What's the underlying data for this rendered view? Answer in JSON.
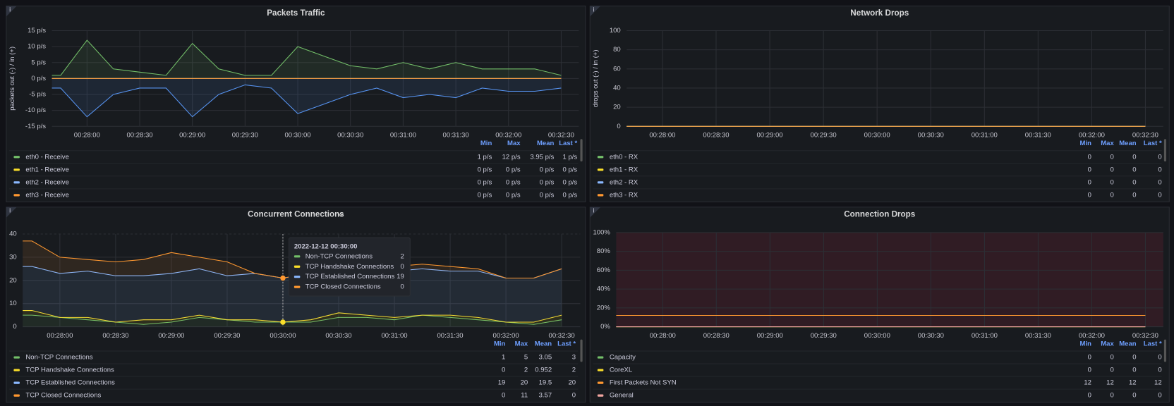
{
  "chart_data": [
    {
      "type": "line",
      "title": "Packets Traffic",
      "ylabel": "packets out (-) / in (+)",
      "fill": true,
      "x": [
        "00:27:30",
        "00:27:45",
        "00:28:00",
        "00:28:15",
        "00:28:30",
        "00:28:45",
        "00:29:00",
        "00:29:15",
        "00:29:30",
        "00:29:45",
        "00:30:00",
        "00:30:15",
        "00:30:30",
        "00:30:45",
        "00:31:00",
        "00:31:15",
        "00:31:30",
        "00:31:45",
        "00:32:00",
        "00:32:15",
        "00:32:30"
      ],
      "xlim": [
        "00:27:40",
        "00:32:40"
      ],
      "xticks": [
        "00:28:00",
        "00:28:30",
        "00:29:00",
        "00:29:30",
        "00:30:00",
        "00:30:30",
        "00:31:00",
        "00:31:30",
        "00:32:00",
        "00:32:30"
      ],
      "ylim": [
        -15,
        15
      ],
      "yticks": [
        {
          "value": 15,
          "label": "15 p/s"
        },
        {
          "value": 10,
          "label": "10 p/s"
        },
        {
          "value": 5,
          "label": "5 p/s"
        },
        {
          "value": 0,
          "label": "0 p/s"
        },
        {
          "value": -5,
          "label": "-5 p/s"
        },
        {
          "value": -10,
          "label": "-10 p/s"
        },
        {
          "value": -15,
          "label": "-15 p/s"
        }
      ],
      "grid": true,
      "legend_columns": [
        "Min",
        "Max",
        "Mean",
        "Last *"
      ],
      "series": [
        {
          "color": "#5794f2",
          "values": [
            -3,
            -3,
            -12,
            -5,
            -3,
            -3,
            -12,
            -5,
            -2,
            -3,
            -11,
            -8,
            -5,
            -3,
            -6,
            -5,
            -6,
            -3,
            -4,
            -4,
            -3
          ]
        },
        {
          "name": "eth0 - Receive",
          "color": "#73bf69",
          "values": [
            1,
            1,
            12,
            3,
            2,
            1,
            11,
            3,
            1,
            1,
            10,
            7,
            4,
            3,
            5,
            3,
            5,
            3,
            3,
            3,
            1
          ],
          "stats": [
            "1 p/s",
            "12 p/s",
            "3.95 p/s",
            "1 p/s"
          ]
        },
        {
          "name": "eth1 - Receive",
          "color": "#fade2a",
          "values": [
            0,
            0,
            0,
            0,
            0,
            0,
            0,
            0,
            0,
            0,
            0,
            0,
            0,
            0,
            0,
            0,
            0,
            0,
            0,
            0,
            0
          ],
          "stats": [
            "0 p/s",
            "0 p/s",
            "0 p/s",
            "0 p/s"
          ]
        },
        {
          "name": "eth2 - Receive",
          "color": "#8ab8ff",
          "values": [
            0,
            0,
            0,
            0,
            0,
            0,
            0,
            0,
            0,
            0,
            0,
            0,
            0,
            0,
            0,
            0,
            0,
            0,
            0,
            0,
            0
          ],
          "stats": [
            "0 p/s",
            "0 p/s",
            "0 p/s",
            "0 p/s"
          ]
        },
        {
          "name": "eth3 - Receive",
          "color": "#ff9830",
          "values": [
            0,
            0,
            0,
            0,
            0,
            0,
            0,
            0,
            0,
            0,
            0,
            0,
            0,
            0,
            0,
            0,
            0,
            0,
            0,
            0,
            0
          ],
          "stats": [
            "0 p/s",
            "0 p/s",
            "0 p/s",
            "0 p/s"
          ]
        }
      ]
    },
    {
      "type": "line",
      "title": "Network Drops",
      "ylabel": "drops out (-) / in (+)",
      "x": [
        "00:27:30",
        "00:27:45",
        "00:28:00",
        "00:28:15",
        "00:28:30",
        "00:28:45",
        "00:29:00",
        "00:29:15",
        "00:29:30",
        "00:29:45",
        "00:30:00",
        "00:30:15",
        "00:30:30",
        "00:30:45",
        "00:31:00",
        "00:31:15",
        "00:31:30",
        "00:31:45",
        "00:32:00",
        "00:32:15",
        "00:32:30"
      ],
      "xlim": [
        "00:27:40",
        "00:32:40"
      ],
      "xticks": [
        "00:28:00",
        "00:28:30",
        "00:29:00",
        "00:29:30",
        "00:30:00",
        "00:30:30",
        "00:31:00",
        "00:31:30",
        "00:32:00",
        "00:32:30"
      ],
      "ylim": [
        0,
        100
      ],
      "yticks": [
        0,
        20,
        40,
        60,
        80,
        100
      ],
      "grid": true,
      "legend_columns": [
        "Min",
        "Max",
        "Mean",
        "Last *"
      ],
      "series": [
        {
          "name": "eth0 - RX",
          "color": "#73bf69",
          "values": [
            0,
            0,
            0,
            0,
            0,
            0,
            0,
            0,
            0,
            0,
            0,
            0,
            0,
            0,
            0,
            0,
            0,
            0,
            0,
            0,
            0
          ],
          "stats": [
            0,
            0,
            0,
            0
          ]
        },
        {
          "name": "eth1 - RX",
          "color": "#fade2a",
          "values": [
            0,
            0,
            0,
            0,
            0,
            0,
            0,
            0,
            0,
            0,
            0,
            0,
            0,
            0,
            0,
            0,
            0,
            0,
            0,
            0,
            0
          ],
          "stats": [
            0,
            0,
            0,
            0
          ]
        },
        {
          "name": "eth2 - RX",
          "color": "#8ab8ff",
          "values": [
            0,
            0,
            0,
            0,
            0,
            0,
            0,
            0,
            0,
            0,
            0,
            0,
            0,
            0,
            0,
            0,
            0,
            0,
            0,
            0,
            0
          ],
          "stats": [
            0,
            0,
            0,
            0
          ]
        },
        {
          "name": "eth3 - RX",
          "color": "#ff9830",
          "values": [
            0,
            0,
            0,
            0,
            0,
            0,
            0,
            0,
            0,
            0,
            0,
            0,
            0,
            0,
            0,
            0,
            0,
            0,
            0,
            0,
            0
          ],
          "stats": [
            0,
            0,
            0,
            0
          ]
        }
      ]
    },
    {
      "type": "line",
      "title": "Concurrent Connections",
      "stacked": true,
      "fill": true,
      "x": [
        "00:27:30",
        "00:27:45",
        "00:28:00",
        "00:28:15",
        "00:28:30",
        "00:28:45",
        "00:29:00",
        "00:29:15",
        "00:29:30",
        "00:29:45",
        "00:30:00",
        "00:30:15",
        "00:30:30",
        "00:30:45",
        "00:31:00",
        "00:31:15",
        "00:31:30",
        "00:31:45",
        "00:32:00",
        "00:32:15",
        "00:32:30"
      ],
      "xlim": [
        "00:27:40",
        "00:32:40"
      ],
      "xticks": [
        "00:28:00",
        "00:28:30",
        "00:29:00",
        "00:29:30",
        "00:30:00",
        "00:30:30",
        "00:31:00",
        "00:31:30",
        "00:32:00",
        "00:32:30"
      ],
      "ylim": [
        0,
        40
      ],
      "yticks": [
        0,
        10,
        20,
        30,
        40
      ],
      "grid": true,
      "legend_columns": [
        "Min",
        "Max",
        "Mean",
        "Last *"
      ],
      "series": [
        {
          "name": "Non-TCP Connections",
          "color": "#73bf69",
          "values": [
            5,
            5,
            4,
            3,
            2,
            1,
            2,
            4,
            3,
            2,
            2,
            2,
            4,
            4,
            3,
            5,
            4,
            3,
            2,
            1,
            3
          ],
          "stats": [
            1,
            5,
            3.05,
            3
          ]
        },
        {
          "name": "TCP Handshake Connections",
          "color": "#fade2a",
          "values": [
            2,
            2,
            0,
            1,
            0,
            2,
            1,
            1,
            0,
            1,
            0,
            1,
            2,
            1,
            1,
            0,
            1,
            1,
            0,
            1,
            2
          ],
          "stats": [
            0,
            2,
            0.952,
            2
          ]
        },
        {
          "name": "TCP Established Connections",
          "color": "#8ab8ff",
          "values": [
            19,
            19,
            19,
            20,
            20,
            19,
            20,
            20,
            19,
            20,
            19,
            20,
            20,
            19,
            20,
            20,
            19,
            20,
            19,
            19,
            20
          ],
          "stats": [
            19,
            20,
            19.5,
            20
          ]
        },
        {
          "name": "TCP Closed Connections",
          "color": "#ff9830",
          "values": [
            11,
            11,
            7,
            5,
            6,
            7,
            9,
            5,
            6,
            0,
            0,
            0,
            0,
            1,
            2,
            2,
            2,
            1,
            0,
            0,
            0
          ],
          "stats": [
            0,
            11,
            3.57,
            0
          ]
        }
      ],
      "tooltip": {
        "title": "2022-12-12 00:30:00"
      }
    },
    {
      "type": "line",
      "title": "Connection Drops",
      "x": [
        "00:27:30",
        "00:27:45",
        "00:28:00",
        "00:28:15",
        "00:28:30",
        "00:28:45",
        "00:29:00",
        "00:29:15",
        "00:29:30",
        "00:29:45",
        "00:30:00",
        "00:30:15",
        "00:30:30",
        "00:30:45",
        "00:31:00",
        "00:31:15",
        "00:31:30",
        "00:31:45",
        "00:32:00",
        "00:32:15",
        "00:32:30"
      ],
      "xlim": [
        "00:27:34",
        "00:32:40"
      ],
      "xticks": [
        "00:28:00",
        "00:28:30",
        "00:29:00",
        "00:29:30",
        "00:30:00",
        "00:30:30",
        "00:31:00",
        "00:31:30",
        "00:32:00",
        "00:32:30"
      ],
      "ylim": [
        0,
        100
      ],
      "yticks": [
        {
          "value": 0,
          "label": "0%"
        },
        {
          "value": 20,
          "label": "20%"
        },
        {
          "value": 40,
          "label": "40%"
        },
        {
          "value": 60,
          "label": "60%"
        },
        {
          "value": 80,
          "label": "80%"
        },
        {
          "value": 100,
          "label": "100%"
        }
      ],
      "grid": true,
      "legend_columns": [
        "Min",
        "Max",
        "Mean",
        "Last *"
      ],
      "series": [
        {
          "name": "Capacity",
          "color": "#73bf69",
          "values": [
            0,
            0,
            0,
            0,
            0,
            0,
            0,
            0,
            0,
            0,
            0,
            0,
            0,
            0,
            0,
            0,
            0,
            0,
            0,
            0,
            0
          ],
          "stats": [
            0,
            0,
            0,
            0
          ]
        },
        {
          "name": "CoreXL",
          "color": "#fade2a",
          "values": [
            0,
            0,
            0,
            0,
            0,
            0,
            0,
            0,
            0,
            0,
            0,
            0,
            0,
            0,
            0,
            0,
            0,
            0,
            0,
            0,
            0
          ],
          "stats": [
            0,
            0,
            0,
            0
          ]
        },
        {
          "name": "First Packets Not SYN",
          "color": "#ff9830",
          "values": [
            12,
            12,
            12,
            12,
            12,
            12,
            12,
            12,
            12,
            12,
            12,
            12,
            12,
            12,
            12,
            12,
            12,
            12,
            12,
            12,
            12
          ],
          "stats": [
            12,
            12,
            12,
            12
          ]
        },
        {
          "name": "General",
          "color": "#f2a6a0",
          "values": [
            0,
            0,
            0,
            0,
            0,
            0,
            0,
            0,
            0,
            0,
            0,
            0,
            0,
            0,
            0,
            0,
            0,
            0,
            0,
            0,
            0
          ],
          "stats": [
            0,
            0,
            0,
            0
          ]
        }
      ]
    }
  ]
}
